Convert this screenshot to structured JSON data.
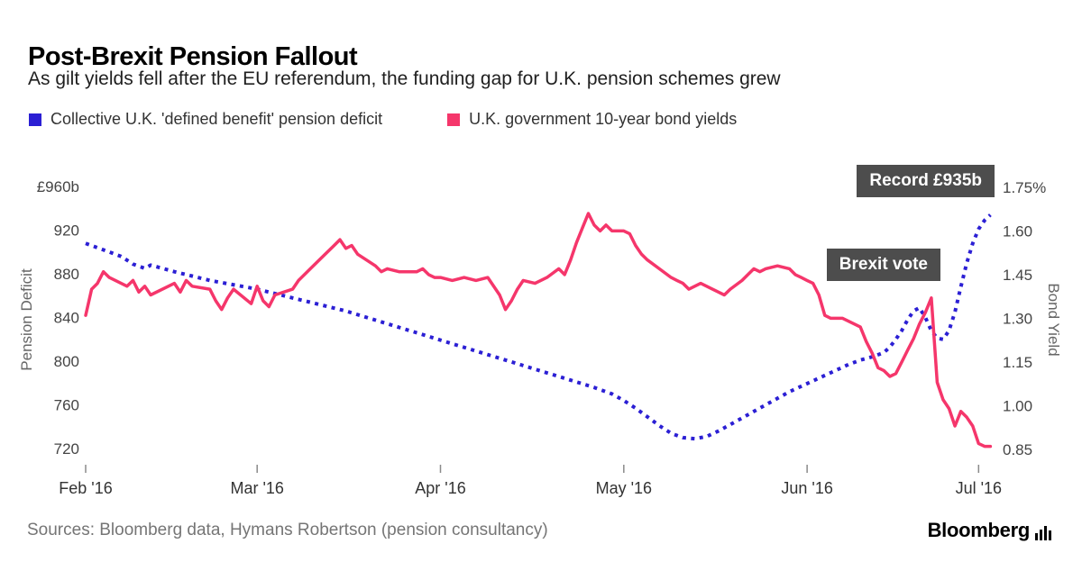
{
  "header": {
    "title": "Post-Brexit Pension Fallout",
    "subtitle": "As gilt yields fell after the EU referendum, the funding gap for U.K. pension schemes grew"
  },
  "legend": [
    {
      "label": "Collective U.K. 'defined benefit' pension deficit",
      "color": "#2b1fd4"
    },
    {
      "label": "U.K. government 10-year bond yields",
      "color": "#f5366b"
    }
  ],
  "annotations": [
    {
      "id": "record",
      "text": "Record £935b"
    },
    {
      "id": "brexit",
      "text": "Brexit vote"
    }
  ],
  "footer": {
    "sources": "Sources: Bloomberg data, Hymans Robertson (pension consultancy)",
    "logo": "Bloomberg"
  },
  "chart_data": {
    "type": "line",
    "title": "Post-Brexit Pension Fallout",
    "subtitle": "As gilt yields fell after the EU referendum, the funding gap for U.K. pension schemes grew",
    "grid": false,
    "legend_position": "top-left",
    "x_domain_days": [
      0,
      154
    ],
    "x_ticks": [
      {
        "day": 0,
        "label": "Feb '16"
      },
      {
        "day": 29,
        "label": "Mar '16"
      },
      {
        "day": 60,
        "label": "Apr '16"
      },
      {
        "day": 91,
        "label": "May '16"
      },
      {
        "day": 122,
        "label": "Jun '16"
      },
      {
        "day": 151,
        "label": "Jul '16"
      }
    ],
    "left_axis": {
      "label": "Pension Deficit",
      "min": 706,
      "max": 970,
      "ticks": [
        {
          "v": 960,
          "label": "£960b"
        },
        {
          "v": 920,
          "label": "920"
        },
        {
          "v": 880,
          "label": "880"
        },
        {
          "v": 840,
          "label": "840"
        },
        {
          "v": 800,
          "label": "800"
        },
        {
          "v": 760,
          "label": "760"
        },
        {
          "v": 720,
          "label": "720"
        }
      ]
    },
    "right_axis": {
      "label": "Bond Yield",
      "min": 0.8,
      "max": 1.79,
      "ticks": [
        {
          "v": 1.75,
          "label": "1.75%"
        },
        {
          "v": 1.6,
          "label": "1.60"
        },
        {
          "v": 1.45,
          "label": "1.45"
        },
        {
          "v": 1.3,
          "label": "1.30"
        },
        {
          "v": 1.15,
          "label": "1.15"
        },
        {
          "v": 1.0,
          "label": "1.00"
        },
        {
          "v": 0.85,
          "label": "0.85"
        }
      ]
    },
    "series": [
      {
        "name": "Collective U.K. 'defined benefit' pension deficit",
        "axis": "left",
        "style": "dotted",
        "color": "#2b1fd4",
        "unit": "£b",
        "points": [
          [
            0,
            908
          ],
          [
            2,
            904
          ],
          [
            4,
            900
          ],
          [
            6,
            896
          ],
          [
            8,
            889
          ],
          [
            10,
            885
          ],
          [
            11,
            888
          ],
          [
            13,
            885
          ],
          [
            15,
            882
          ],
          [
            18,
            878
          ],
          [
            21,
            874
          ],
          [
            24,
            871
          ],
          [
            27,
            868
          ],
          [
            29,
            866
          ],
          [
            32,
            862
          ],
          [
            35,
            858
          ],
          [
            38,
            854
          ],
          [
            41,
            850
          ],
          [
            44,
            846
          ],
          [
            47,
            841
          ],
          [
            50,
            836
          ],
          [
            53,
            831
          ],
          [
            56,
            826
          ],
          [
            59,
            821
          ],
          [
            62,
            816
          ],
          [
            65,
            811
          ],
          [
            68,
            806
          ],
          [
            71,
            801
          ],
          [
            74,
            796
          ],
          [
            77,
            791
          ],
          [
            80,
            786
          ],
          [
            83,
            781
          ],
          [
            86,
            776
          ],
          [
            89,
            770
          ],
          [
            91,
            764
          ],
          [
            93,
            757
          ],
          [
            95,
            749
          ],
          [
            97,
            741
          ],
          [
            99,
            734
          ],
          [
            101,
            730
          ],
          [
            103,
            729
          ],
          [
            105,
            731
          ],
          [
            107,
            736
          ],
          [
            109,
            742
          ],
          [
            111,
            748
          ],
          [
            113,
            754
          ],
          [
            115,
            760
          ],
          [
            117,
            766
          ],
          [
            119,
            772
          ],
          [
            121,
            777
          ],
          [
            123,
            782
          ],
          [
            125,
            787
          ],
          [
            127,
            792
          ],
          [
            129,
            797
          ],
          [
            131,
            801
          ],
          [
            133,
            804
          ],
          [
            135,
            808
          ],
          [
            136,
            813
          ],
          [
            137,
            820
          ],
          [
            138,
            828
          ],
          [
            139,
            838
          ],
          [
            140,
            846
          ],
          [
            141,
            849
          ],
          [
            142,
            840
          ],
          [
            143,
            828
          ],
          [
            144,
            821
          ],
          [
            145,
            820
          ],
          [
            146,
            828
          ],
          [
            147,
            845
          ],
          [
            148,
            868
          ],
          [
            149,
            890
          ],
          [
            150,
            908
          ],
          [
            151,
            921
          ],
          [
            152,
            929
          ],
          [
            153,
            934
          ]
        ]
      },
      {
        "name": "U.K. government 10-year bond yields",
        "axis": "right",
        "style": "solid",
        "color": "#f5366b",
        "unit": "%",
        "points": [
          [
            0,
            1.31
          ],
          [
            1,
            1.4
          ],
          [
            2,
            1.42
          ],
          [
            3,
            1.46
          ],
          [
            4,
            1.44
          ],
          [
            7,
            1.41
          ],
          [
            8,
            1.43
          ],
          [
            9,
            1.39
          ],
          [
            10,
            1.41
          ],
          [
            11,
            1.38
          ],
          [
            14,
            1.41
          ],
          [
            15,
            1.42
          ],
          [
            16,
            1.39
          ],
          [
            17,
            1.43
          ],
          [
            18,
            1.41
          ],
          [
            21,
            1.4
          ],
          [
            22,
            1.36
          ],
          [
            23,
            1.33
          ],
          [
            24,
            1.37
          ],
          [
            25,
            1.4
          ],
          [
            28,
            1.35
          ],
          [
            29,
            1.41
          ],
          [
            30,
            1.36
          ],
          [
            31,
            1.34
          ],
          [
            32,
            1.38
          ],
          [
            35,
            1.4
          ],
          [
            36,
            1.43
          ],
          [
            38,
            1.47
          ],
          [
            40,
            1.51
          ],
          [
            42,
            1.55
          ],
          [
            43,
            1.57
          ],
          [
            44,
            1.54
          ],
          [
            45,
            1.55
          ],
          [
            46,
            1.52
          ],
          [
            49,
            1.48
          ],
          [
            50,
            1.46
          ],
          [
            51,
            1.47
          ],
          [
            53,
            1.46
          ],
          [
            56,
            1.46
          ],
          [
            57,
            1.47
          ],
          [
            58,
            1.45
          ],
          [
            59,
            1.44
          ],
          [
            60,
            1.44
          ],
          [
            62,
            1.43
          ],
          [
            64,
            1.44
          ],
          [
            66,
            1.43
          ],
          [
            68,
            1.44
          ],
          [
            70,
            1.38
          ],
          [
            71,
            1.33
          ],
          [
            72,
            1.36
          ],
          [
            73,
            1.4
          ],
          [
            74,
            1.43
          ],
          [
            76,
            1.42
          ],
          [
            78,
            1.44
          ],
          [
            80,
            1.47
          ],
          [
            81,
            1.45
          ],
          [
            82,
            1.5
          ],
          [
            83,
            1.56
          ],
          [
            84,
            1.61
          ],
          [
            85,
            1.66
          ],
          [
            86,
            1.62
          ],
          [
            87,
            1.6
          ],
          [
            88,
            1.62
          ],
          [
            89,
            1.6
          ],
          [
            91,
            1.6
          ],
          [
            92,
            1.59
          ],
          [
            93,
            1.55
          ],
          [
            94,
            1.52
          ],
          [
            95,
            1.5
          ],
          [
            97,
            1.47
          ],
          [
            99,
            1.44
          ],
          [
            100,
            1.43
          ],
          [
            101,
            1.42
          ],
          [
            102,
            1.4
          ],
          [
            104,
            1.42
          ],
          [
            106,
            1.4
          ],
          [
            107,
            1.39
          ],
          [
            108,
            1.38
          ],
          [
            109,
            1.4
          ],
          [
            111,
            1.43
          ],
          [
            112,
            1.45
          ],
          [
            113,
            1.47
          ],
          [
            114,
            1.46
          ],
          [
            115,
            1.47
          ],
          [
            117,
            1.48
          ],
          [
            119,
            1.47
          ],
          [
            120,
            1.45
          ],
          [
            121,
            1.44
          ],
          [
            122,
            1.43
          ],
          [
            123,
            1.42
          ],
          [
            124,
            1.38
          ],
          [
            125,
            1.31
          ],
          [
            126,
            1.3
          ],
          [
            128,
            1.3
          ],
          [
            130,
            1.28
          ],
          [
            131,
            1.27
          ],
          [
            132,
            1.22
          ],
          [
            133,
            1.18
          ],
          [
            134,
            1.13
          ],
          [
            135,
            1.12
          ],
          [
            136,
            1.1
          ],
          [
            137,
            1.11
          ],
          [
            138,
            1.15
          ],
          [
            139,
            1.19
          ],
          [
            140,
            1.23
          ],
          [
            141,
            1.28
          ],
          [
            142,
            1.32
          ],
          [
            143,
            1.37
          ],
          [
            144,
            1.08
          ],
          [
            145,
            1.02
          ],
          [
            146,
            0.99
          ],
          [
            147,
            0.93
          ],
          [
            148,
            0.98
          ],
          [
            149,
            0.96
          ],
          [
            150,
            0.93
          ],
          [
            151,
            0.87
          ],
          [
            152,
            0.86
          ],
          [
            153,
            0.86
          ]
        ]
      }
    ],
    "annotations": [
      {
        "text": "Record £935b",
        "target": "end of pension deficit line"
      },
      {
        "text": "Brexit vote",
        "target": "late June yield crash"
      }
    ]
  }
}
